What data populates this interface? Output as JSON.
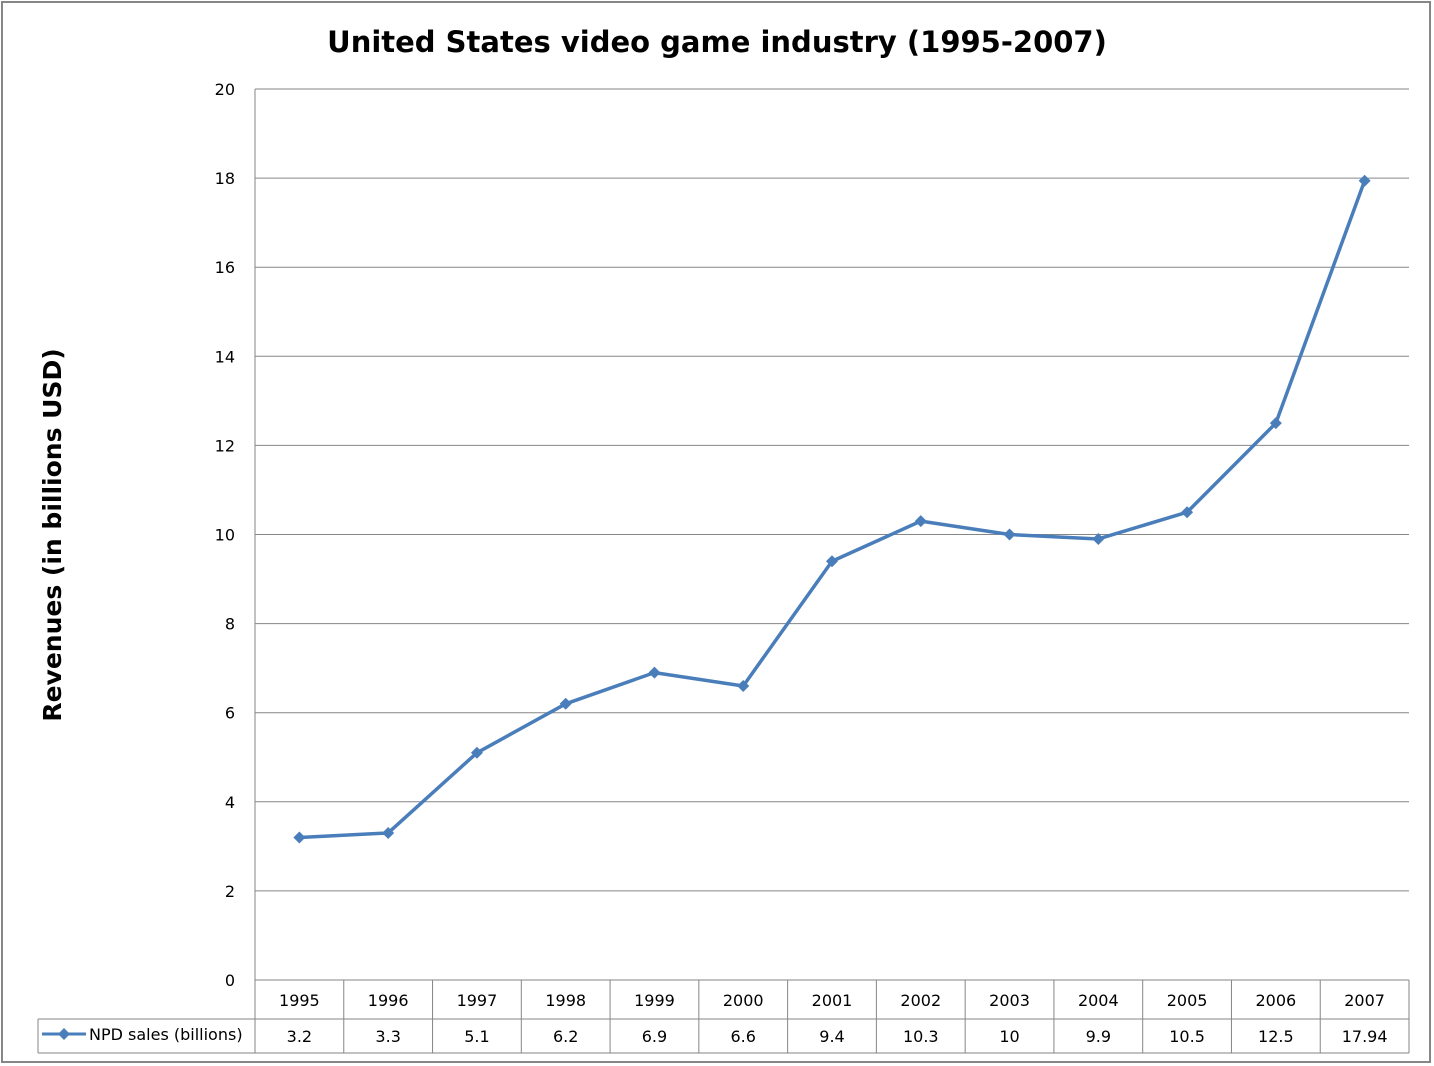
{
  "chart_data": {
    "type": "line",
    "title": "United States video game industry (1995-2007)",
    "xlabel": "",
    "ylabel": "Revenues (in billions USD)",
    "ylim": [
      0,
      20
    ],
    "yticks": [
      0,
      2,
      4,
      6,
      8,
      10,
      12,
      14,
      16,
      18,
      20
    ],
    "grid": true,
    "legend": "data-table-left",
    "categories": [
      "1995",
      "1996",
      "1997",
      "1998",
      "1999",
      "2000",
      "2001",
      "2002",
      "2003",
      "2004",
      "2005",
      "2006",
      "2007"
    ],
    "series": [
      {
        "name": "NPD sales (billions)",
        "color": "#4a7ebb",
        "marker": "diamond",
        "values": [
          3.2,
          3.3,
          5.1,
          6.2,
          6.9,
          6.6,
          9.4,
          10.3,
          10,
          9.9,
          10.5,
          12.5,
          17.94
        ]
      }
    ]
  }
}
